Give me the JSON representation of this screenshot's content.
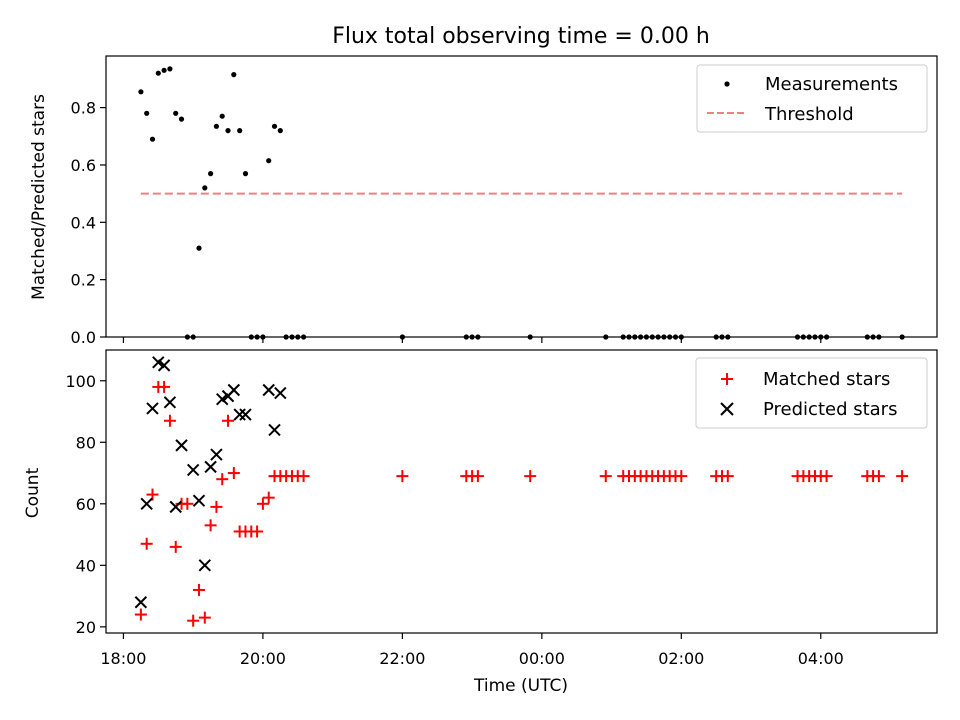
{
  "figure": {
    "title": "Flux total observing time = 0.00 h"
  },
  "chart_data": [
    {
      "type": "scatter",
      "panel": "top",
      "title": "Flux total observing time = 0.00 h",
      "xlabel": "",
      "ylabel": "Matched/Predicted stars",
      "xlim": [
        "17:45",
        "05:40"
      ],
      "ylim": [
        0,
        0.98
      ],
      "yticks": [
        0.0,
        0.2,
        0.4,
        0.6,
        0.8
      ],
      "ytick_labels": [
        "0.0",
        "0.2",
        "0.4",
        "0.6",
        "0.8"
      ],
      "legend_position": "upper right",
      "grid": false,
      "series": [
        {
          "name": "Measurements",
          "marker": "dot",
          "color": "#000000",
          "x": [
            "18:15",
            "18:20",
            "18:25",
            "18:30",
            "18:35",
            "18:40",
            "18:45",
            "18:50",
            "18:55",
            "19:00",
            "19:05",
            "19:10",
            "19:15",
            "19:20",
            "19:25",
            "19:30",
            "19:35",
            "19:40",
            "19:45",
            "19:50",
            "19:55",
            "20:00",
            "20:05",
            "20:10",
            "20:15",
            "20:20",
            "20:25",
            "20:30",
            "20:35",
            "22:00",
            "22:55",
            "23:00",
            "23:05",
            "23:50",
            "00:55",
            "01:10",
            "01:15",
            "01:20",
            "01:25",
            "01:30",
            "01:35",
            "01:40",
            "01:45",
            "01:50",
            "01:55",
            "02:00",
            "02:30",
            "02:35",
            "02:40",
            "03:40",
            "03:45",
            "03:50",
            "03:55",
            "04:00",
            "04:05",
            "04:40",
            "04:45",
            "04:50",
            "05:10"
          ],
          "y": [
            0.855,
            0.78,
            0.69,
            0.92,
            0.93,
            0.935,
            0.78,
            0.76,
            0.0,
            0.0,
            0.31,
            0.52,
            0.57,
            0.735,
            0.77,
            0.72,
            0.915,
            0.72,
            0.57,
            0.0,
            0.0,
            0.0,
            0.615,
            0.735,
            0.72,
            0.0,
            0.0,
            0.0,
            0.0,
            0.0,
            0.0,
            0.0,
            0.0,
            0.0,
            0.0,
            0.0,
            0.0,
            0.0,
            0.0,
            0.0,
            0.0,
            0.0,
            0.0,
            0.0,
            0.0,
            0.0,
            0.0,
            0.0,
            0.0,
            0.0,
            0.0,
            0.0,
            0.0,
            0.0,
            0.0,
            0.0,
            0.0,
            0.0,
            0.0
          ]
        },
        {
          "name": "Threshold",
          "line": "dashed",
          "color": "#f08080",
          "x": [
            "18:15",
            "05:10"
          ],
          "y": [
            0.5,
            0.5
          ]
        }
      ]
    },
    {
      "type": "scatter",
      "panel": "bottom",
      "xlabel": "Time (UTC)",
      "ylabel": "Count",
      "xlim": [
        "17:45",
        "05:40"
      ],
      "ylim": [
        18,
        110
      ],
      "xticks": [
        "18:00",
        "20:00",
        "22:00",
        "00:00",
        "02:00",
        "04:00"
      ],
      "yticks": [
        20,
        40,
        60,
        80,
        100
      ],
      "ytick_labels": [
        "20",
        "40",
        "60",
        "80",
        "100"
      ],
      "legend_position": "upper right",
      "grid": false,
      "series": [
        {
          "name": "Matched stars",
          "marker": "plus",
          "color": "#ff0000",
          "x": [
            "18:15",
            "18:20",
            "18:25",
            "18:30",
            "18:35",
            "18:40",
            "18:45",
            "18:50",
            "18:55",
            "19:00",
            "19:05",
            "19:10",
            "19:15",
            "19:20",
            "19:25",
            "19:30",
            "19:35",
            "19:40",
            "19:45",
            "19:50",
            "19:55",
            "20:00",
            "20:05",
            "20:10",
            "20:15",
            "20:20",
            "20:25",
            "20:30",
            "20:35",
            "22:00",
            "22:55",
            "23:00",
            "23:05",
            "23:50",
            "00:55",
            "01:10",
            "01:15",
            "01:20",
            "01:25",
            "01:30",
            "01:35",
            "01:40",
            "01:45",
            "01:50",
            "01:55",
            "02:00",
            "02:30",
            "02:35",
            "02:40",
            "03:40",
            "03:45",
            "03:50",
            "03:55",
            "04:00",
            "04:05",
            "04:40",
            "04:45",
            "04:50",
            "05:10"
          ],
          "y": [
            24,
            47,
            63,
            98,
            98,
            87,
            46,
            60,
            60,
            22,
            32,
            23,
            53,
            59,
            68,
            87,
            70,
            51,
            51,
            51,
            51,
            60,
            62,
            69,
            69,
            69,
            69,
            69,
            69,
            69,
            69,
            69,
            69,
            69,
            69,
            69,
            69,
            69,
            69,
            69,
            69,
            69,
            69,
            69,
            69,
            69,
            69,
            69,
            69,
            69,
            69,
            69,
            69,
            69,
            69,
            69,
            69,
            69,
            69
          ]
        },
        {
          "name": "Predicted stars",
          "marker": "x",
          "color": "#000000",
          "x": [
            "18:15",
            "18:20",
            "18:25",
            "18:30",
            "18:35",
            "18:40",
            "18:45",
            "18:50",
            "19:00",
            "19:05",
            "19:10",
            "19:15",
            "19:20",
            "19:25",
            "19:30",
            "19:35",
            "19:40",
            "19:45",
            "20:05",
            "20:10",
            "20:15"
          ],
          "y": [
            28,
            60,
            91,
            106,
            105,
            93,
            59,
            79,
            71,
            61,
            40,
            72,
            76,
            94,
            95,
            97,
            89,
            89,
            97,
            84,
            96
          ]
        }
      ]
    }
  ]
}
